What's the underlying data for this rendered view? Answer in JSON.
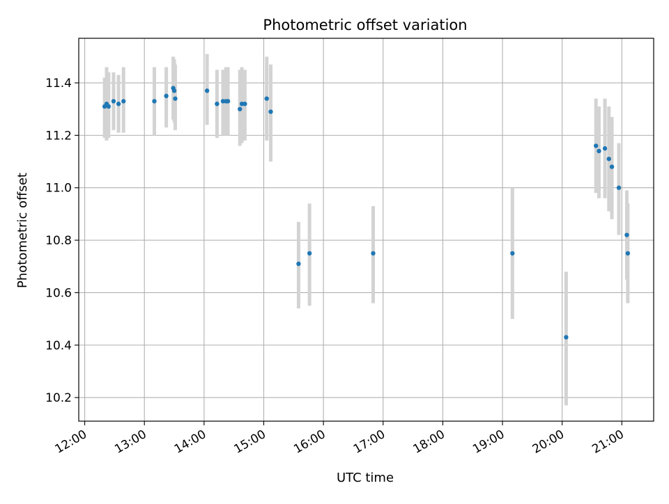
{
  "chart_data": {
    "type": "scatter",
    "title": "Photometric offset variation",
    "xlabel": "UTC time",
    "ylabel": "Photometric offset",
    "x_ticks": [
      "12:00",
      "13:00",
      "14:00",
      "15:00",
      "16:00",
      "17:00",
      "18:00",
      "19:00",
      "20:00",
      "21:00"
    ],
    "y_ticks": [
      "10.2",
      "10.4",
      "10.6",
      "10.8",
      "11.0",
      "11.2",
      "11.4"
    ],
    "xlim": [
      "11:54",
      "21:32"
    ],
    "ylim": [
      10.11,
      11.57
    ],
    "grid": true,
    "colors": {
      "marker": "#1f77b4",
      "errorbar": "#d3d3d3",
      "grid": "#b0b0b0"
    },
    "points": [
      {
        "x": "12:20",
        "y": 11.31,
        "yerr_low": 11.19,
        "yerr_high": 11.42
      },
      {
        "x": "12:22",
        "y": 11.32,
        "yerr_low": 11.18,
        "yerr_high": 11.46
      },
      {
        "x": "12:24",
        "y": 11.31,
        "yerr_low": 11.19,
        "yerr_high": 11.44
      },
      {
        "x": "12:29",
        "y": 11.33,
        "yerr_low": 11.22,
        "yerr_high": 11.44
      },
      {
        "x": "12:34",
        "y": 11.32,
        "yerr_low": 11.21,
        "yerr_high": 11.43
      },
      {
        "x": "12:39",
        "y": 11.33,
        "yerr_low": 11.21,
        "yerr_high": 11.46
      },
      {
        "x": "13:10",
        "y": 11.33,
        "yerr_low": 11.2,
        "yerr_high": 11.46
      },
      {
        "x": "13:22",
        "y": 11.35,
        "yerr_low": 11.23,
        "yerr_high": 11.46
      },
      {
        "x": "13:29",
        "y": 11.38,
        "yerr_low": 11.26,
        "yerr_high": 11.5
      },
      {
        "x": "13:30",
        "y": 11.37,
        "yerr_low": 11.25,
        "yerr_high": 11.49
      },
      {
        "x": "13:31",
        "y": 11.34,
        "yerr_low": 11.22,
        "yerr_high": 11.47
      },
      {
        "x": "14:03",
        "y": 11.37,
        "yerr_low": 11.24,
        "yerr_high": 11.51
      },
      {
        "x": "14:13",
        "y": 11.32,
        "yerr_low": 11.19,
        "yerr_high": 11.45
      },
      {
        "x": "14:19",
        "y": 11.33,
        "yerr_low": 11.2,
        "yerr_high": 11.45
      },
      {
        "x": "14:22",
        "y": 11.33,
        "yerr_low": 11.2,
        "yerr_high": 11.46
      },
      {
        "x": "14:24",
        "y": 11.33,
        "yerr_low": 11.2,
        "yerr_high": 11.46
      },
      {
        "x": "14:36",
        "y": 11.3,
        "yerr_low": 11.16,
        "yerr_high": 11.45
      },
      {
        "x": "14:38",
        "y": 11.32,
        "yerr_low": 11.17,
        "yerr_high": 11.46
      },
      {
        "x": "14:41",
        "y": 11.32,
        "yerr_low": 11.18,
        "yerr_high": 11.45
      },
      {
        "x": "15:03",
        "y": 11.34,
        "yerr_low": 11.18,
        "yerr_high": 11.5
      },
      {
        "x": "15:07",
        "y": 11.29,
        "yerr_low": 11.1,
        "yerr_high": 11.47
      },
      {
        "x": "15:35",
        "y": 10.71,
        "yerr_low": 10.54,
        "yerr_high": 10.87
      },
      {
        "x": "15:46",
        "y": 10.75,
        "yerr_low": 10.55,
        "yerr_high": 10.94
      },
      {
        "x": "16:50",
        "y": 10.75,
        "yerr_low": 10.56,
        "yerr_high": 10.93
      },
      {
        "x": "19:10",
        "y": 10.75,
        "yerr_low": 10.5,
        "yerr_high": 11.0
      },
      {
        "x": "20:04",
        "y": 10.43,
        "yerr_low": 10.17,
        "yerr_high": 10.68
      },
      {
        "x": "20:34",
        "y": 11.16,
        "yerr_low": 10.98,
        "yerr_high": 11.34
      },
      {
        "x": "20:37",
        "y": 11.14,
        "yerr_low": 10.96,
        "yerr_high": 11.31
      },
      {
        "x": "20:43",
        "y": 11.15,
        "yerr_low": 10.96,
        "yerr_high": 11.34
      },
      {
        "x": "20:47",
        "y": 11.11,
        "yerr_low": 10.91,
        "yerr_high": 11.31
      },
      {
        "x": "20:50",
        "y": 11.08,
        "yerr_low": 10.88,
        "yerr_high": 11.27
      },
      {
        "x": "20:57",
        "y": 11.0,
        "yerr_low": 10.82,
        "yerr_high": 11.17
      },
      {
        "x": "21:05",
        "y": 10.82,
        "yerr_low": 10.65,
        "yerr_high": 10.99
      },
      {
        "x": "21:06",
        "y": 10.75,
        "yerr_low": 10.56,
        "yerr_high": 10.94
      }
    ]
  }
}
